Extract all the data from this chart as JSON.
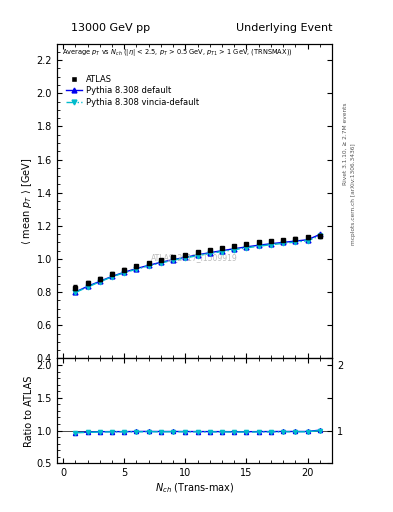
{
  "title_left": "13000 GeV pp",
  "title_right": "Underlying Event",
  "ylabel_main": "\\langle mean p_T \\rangle [GeV]",
  "ylabel_ratio": "Ratio to ATLAS",
  "xlabel": "N_{ch} (Trans-max)",
  "watermark": "ATLAS_2017_I1509919",
  "right_label_top": "Rivet 3.1.10, ≥ 2.7M events",
  "right_label_bottom": "mcplots.cern.ch [arXiv:1306.3436]",
  "atlas_x": [
    1,
    2,
    3,
    4,
    5,
    6,
    7,
    8,
    9,
    10,
    11,
    12,
    13,
    14,
    15,
    16,
    17,
    18,
    19,
    20,
    21
  ],
  "atlas_y": [
    0.825,
    0.855,
    0.88,
    0.91,
    0.935,
    0.955,
    0.975,
    0.995,
    1.01,
    1.025,
    1.04,
    1.055,
    1.068,
    1.08,
    1.09,
    1.1,
    1.108,
    1.115,
    1.122,
    1.13,
    1.14
  ],
  "atlas_yerr": [
    0.015,
    0.012,
    0.01,
    0.009,
    0.008,
    0.008,
    0.007,
    0.007,
    0.007,
    0.007,
    0.007,
    0.007,
    0.007,
    0.007,
    0.007,
    0.007,
    0.008,
    0.008,
    0.009,
    0.01,
    0.012
  ],
  "pythia_default_x": [
    1,
    2,
    3,
    4,
    5,
    6,
    7,
    8,
    9,
    10,
    11,
    12,
    13,
    14,
    15,
    16,
    17,
    18,
    19,
    20,
    21
  ],
  "pythia_default_y": [
    0.8,
    0.835,
    0.865,
    0.895,
    0.92,
    0.942,
    0.962,
    0.98,
    0.996,
    1.01,
    1.025,
    1.038,
    1.05,
    1.062,
    1.073,
    1.083,
    1.092,
    1.1,
    1.108,
    1.116,
    1.148
  ],
  "pythia_vincia_x": [
    1,
    2,
    3,
    4,
    5,
    6,
    7,
    8,
    9,
    10,
    11,
    12,
    13,
    14,
    15,
    16,
    17,
    18,
    19,
    20,
    21
  ],
  "pythia_vincia_y": [
    0.798,
    0.83,
    0.862,
    0.892,
    0.917,
    0.938,
    0.958,
    0.976,
    0.992,
    1.006,
    1.02,
    1.033,
    1.045,
    1.056,
    1.067,
    1.077,
    1.086,
    1.094,
    1.102,
    1.11,
    1.14
  ],
  "ratio_pythia_default_y": [
    0.97,
    0.976,
    0.983,
    0.984,
    0.984,
    0.986,
    0.987,
    0.985,
    0.986,
    0.985,
    0.985,
    0.984,
    0.984,
    0.983,
    0.983,
    0.984,
    0.985,
    0.986,
    0.986,
    0.986,
    1.007
  ],
  "ratio_pythia_vincia_y": [
    0.968,
    0.971,
    0.979,
    0.98,
    0.981,
    0.981,
    0.982,
    0.981,
    0.982,
    0.981,
    0.981,
    0.98,
    0.98,
    0.977,
    0.978,
    0.979,
    0.98,
    0.981,
    0.981,
    0.981,
    0.999
  ],
  "atlas_color": "#000000",
  "pythia_default_color": "#0000ee",
  "pythia_vincia_color": "#00bbcc",
  "xlim": [
    -0.5,
    22.0
  ],
  "ylim_main": [
    0.4,
    2.3
  ],
  "ylim_ratio": [
    0.5,
    2.1
  ],
  "yticks_main": [
    0.4,
    0.6,
    0.8,
    1.0,
    1.2,
    1.4,
    1.6,
    1.8,
    2.0,
    2.2
  ],
  "yticks_ratio": [
    0.5,
    1.0,
    1.5,
    2.0
  ],
  "xticks": [
    0,
    5,
    10,
    15,
    20
  ]
}
